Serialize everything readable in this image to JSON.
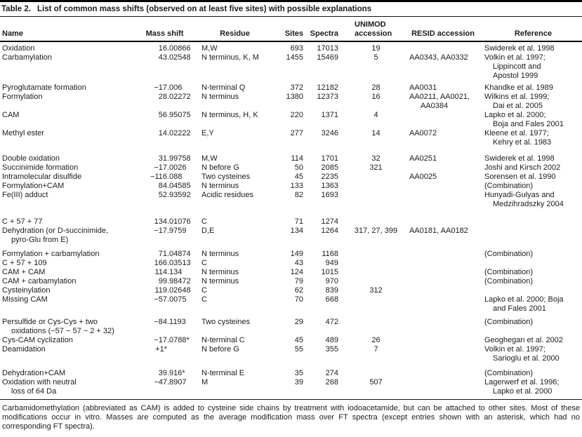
{
  "title": {
    "label": "Table 2.",
    "text": "List of common mass shifts (observed on at least five sites) with possible explanations"
  },
  "table": {
    "columns": {
      "name": "Name",
      "mass_shift": "Mass shift",
      "residue": "Residue",
      "sites": "Sites",
      "spectra": "Spectra",
      "unimod": "UNIMOD\naccession",
      "resid": "RESID accession",
      "reference": "Reference"
    },
    "rows": [
      {
        "name": "Oxidation",
        "mass_shift": "16.00866",
        "residue": "M,W",
        "sites": 693,
        "spectra": 17013,
        "unimod": "19",
        "resid": "",
        "reference": "Swiderek et al. 1998"
      },
      {
        "name": "Carbamylation",
        "mass_shift": "43.02548",
        "residue": "N terminus, K, M",
        "sites": 1455,
        "spectra": 15469,
        "unimod": "5",
        "resid": "AA0343, AA0332",
        "reference": "Volkin et al. 1997;\nLippincott and\nApostol 1999"
      },
      {
        "name": "Pyroglutamate formation",
        "mass_shift": "−17.006",
        "residue": "N-terminal Q",
        "sites": 372,
        "spectra": 12182,
        "unimod": "28",
        "resid": "AA0031",
        "reference": "Khandke et al. 1989"
      },
      {
        "name": "Formylation",
        "mass_shift": "28.02272",
        "residue": "N terminus",
        "sites": 1380,
        "spectra": 12373,
        "unimod": "16",
        "resid": "AA0211, AA0021,\nAA0384",
        "reference": "Wilkins et al. 1999;\nDai et al. 2005"
      },
      {
        "name": "CAM",
        "mass_shift": "56.95075",
        "residue": "N terminus, H, K",
        "sites": 220,
        "spectra": 1371,
        "unimod": "4",
        "resid": "",
        "reference": "Lapko et al. 2000;\nBoja and Fales 2001"
      },
      {
        "name": "Methyl ester",
        "mass_shift": "14.02222",
        "residue": "E,Y",
        "sites": 277,
        "spectra": 3246,
        "unimod": "14",
        "resid": "AA0072",
        "reference": "Kleene et al. 1977;\nKehry et al. 1983"
      },
      {
        "name": "Double oxidation",
        "mass_shift": "31.99758",
        "residue": "M,W",
        "sites": 114,
        "spectra": 1701,
        "unimod": "32",
        "resid": "AA0251",
        "reference": "Swiderek et al. 1998"
      },
      {
        "name": "Succinimide formation",
        "mass_shift": "−17.0026",
        "residue": "N before G",
        "sites": 50,
        "spectra": 2085,
        "unimod": "321",
        "resid": "",
        "reference": "Joshi and Kirsch 2002"
      },
      {
        "name": "Intramolecular disulfide",
        "mass_shift": "−116.088",
        "residue": "Two cysteines",
        "sites": 45,
        "spectra": 2235,
        "unimod": "",
        "resid": "AA0025",
        "reference": "Sorensen et al. 1990"
      },
      {
        "name": "Formylation+CAM",
        "mass_shift": "84.04585",
        "residue": "N terminus",
        "sites": 133,
        "spectra": 1363,
        "unimod": "",
        "resid": "",
        "reference": "(Combination)"
      },
      {
        "name": "Fe(III) adduct",
        "mass_shift": "52.93592",
        "residue": "Acidic residues",
        "sites": 82,
        "spectra": 1693,
        "unimod": "",
        "resid": "",
        "reference": "Hunyadi-Gulyas and\nMedzihradszky 2004"
      },
      {
        "name": "C + 57 + 77",
        "mass_shift": "134.01076",
        "residue": "C",
        "sites": 71,
        "spectra": 1274,
        "unimod": "",
        "resid": "",
        "reference": ""
      },
      {
        "name": "Dehydration (or D-succinimide,\npyro-Glu from E)",
        "mass_shift": "−17.9759",
        "residue": "D,E",
        "sites": 134,
        "spectra": 1264,
        "unimod": "317, 27, 399",
        "resid": "AA0181, AA0182",
        "reference": ""
      },
      {
        "name": "Formylation + carbamylation",
        "mass_shift": "71.04874",
        "residue": "N terminus",
        "sites": 149,
        "spectra": 1168,
        "unimod": "",
        "resid": "",
        "reference": "(Combination)"
      },
      {
        "name": "C + 57 + 109",
        "mass_shift": "166.03513",
        "residue": "C",
        "sites": 43,
        "spectra": 949,
        "unimod": "",
        "resid": "",
        "reference": ""
      },
      {
        "name": "CAM + CAM",
        "mass_shift": "114.134",
        "residue": "N terminus",
        "sites": 124,
        "spectra": 1015,
        "unimod": "",
        "resid": "",
        "reference": "(Combination)"
      },
      {
        "name": "CAM + carbamylation",
        "mass_shift": "99.98472",
        "residue": "N terminus",
        "sites": 79,
        "spectra": 970,
        "unimod": "",
        "resid": "",
        "reference": "(Combination)"
      },
      {
        "name": "Cysteinylation",
        "mass_shift": "119.02648",
        "residue": "C",
        "sites": 62,
        "spectra": 839,
        "unimod": "312",
        "resid": "",
        "reference": ""
      },
      {
        "name": "Missing CAM",
        "mass_shift": "−57.0075",
        "residue": "C",
        "sites": 70,
        "spectra": 668,
        "unimod": "",
        "resid": "",
        "reference": "Lapko et al. 2000; Boja\nand Fales 2001"
      },
      {
        "name": "Persulfide or Cys-Cys + two\noxidations (−57 − 57 − 2 + 32)",
        "mass_shift": "−84.1193",
        "residue": "Two cysteines",
        "sites": 29,
        "spectra": 472,
        "unimod": "",
        "resid": "",
        "reference": "(Combination)"
      },
      {
        "name": "Cys-CAM cyclization",
        "mass_shift": "−17.0788*",
        "residue": "N-terminal C",
        "sites": 45,
        "spectra": 489,
        "unimod": "26",
        "resid": "",
        "reference": "Geoghegan et al. 2002"
      },
      {
        "name": "Deamidation",
        "mass_shift": "+1*",
        "residue": "N before G",
        "sites": 55,
        "spectra": 355,
        "unimod": "7",
        "resid": "",
        "reference": "Volkin et al. 1997;\nSarioglu et al. 2000"
      },
      {
        "name": "Dehydration+CAM",
        "mass_shift": "39.916*",
        "residue": "N-terminal E",
        "sites": 35,
        "spectra": 274,
        "unimod": "",
        "resid": "",
        "reference": "(Combination)"
      },
      {
        "name": "Oxidation with neutral\nloss of 64 Da",
        "mass_shift": "−47.8907",
        "residue": "M",
        "sites": 39,
        "spectra": 268,
        "unimod": "507",
        "resid": "",
        "reference": "Lagerwerf et al. 1996;\nLapko et al. 2000"
      }
    ]
  },
  "footnote": "Carbamidomethylation (abbreviated as CAM) is added to cysteine side chains by treatment with iodoacetamide, but can be attached to other sites. Most of these modifications occur in vitro. Masses are computed as the average modification mass over FT spectra (except entries shown with an asterisk, which had no corresponding FT spectra)."
}
